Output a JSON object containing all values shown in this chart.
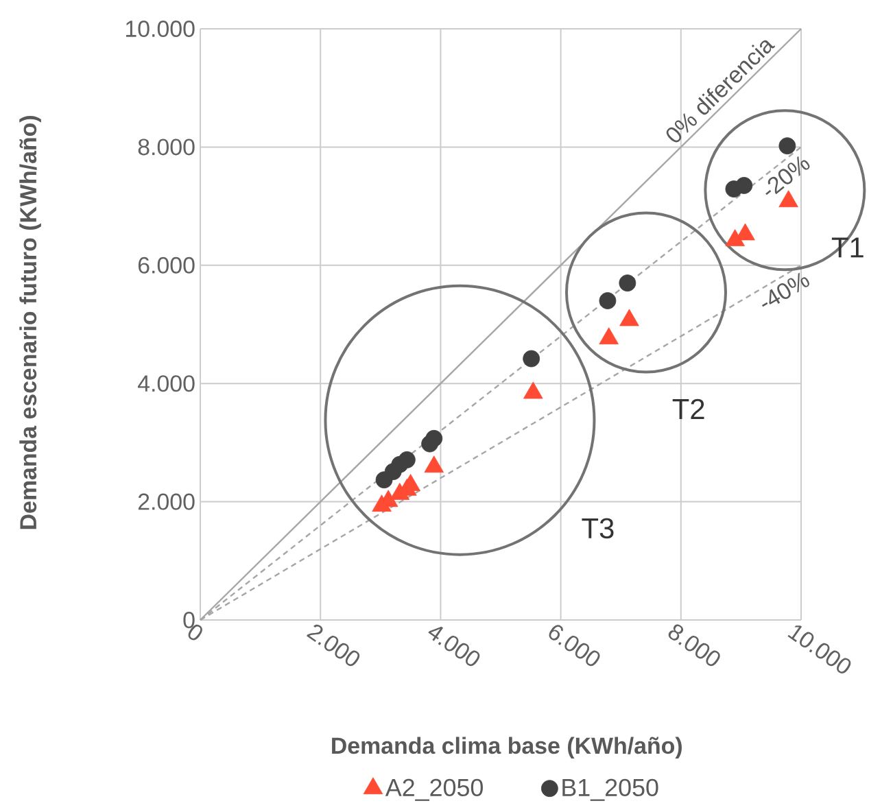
{
  "chart_data": {
    "type": "scatter",
    "xlabel": "Demanda clima base (KWh/año)",
    "ylabel": "Demanda escenario futuro (KWh/año)",
    "xlim": [
      0,
      10000
    ],
    "ylim": [
      0,
      10000
    ],
    "xticks": [
      0,
      {
        "value": 2000,
        "label": "2.000"
      },
      {
        "value": 4000,
        "label": "4.000"
      },
      {
        "value": 6000,
        "label": "6.000"
      },
      {
        "value": 8000,
        "label": "8.000"
      },
      {
        "value": 10000,
        "label": "10.000"
      }
    ],
    "yticks": [
      0,
      {
        "value": 2000,
        "label": "2.000"
      },
      {
        "value": 4000,
        "label": "4.000"
      },
      {
        "value": 6000,
        "label": "6.000"
      },
      {
        "value": 8000,
        "label": "8.000"
      },
      {
        "value": 10000,
        "label": "10.000"
      }
    ],
    "grid": true,
    "legend": "bottom",
    "series": [
      {
        "name": "A2_2050",
        "marker": "triangle",
        "color": "#ff4b33",
        "x": [
          9790,
          9070,
          8900,
          7140,
          6800,
          5540,
          3890,
          3500,
          3440,
          3320,
          3130,
          3020
        ],
        "values": [
          7080,
          6520,
          6420,
          5070,
          4760,
          3840,
          2590,
          2280,
          2200,
          2130,
          2010,
          1930
        ]
      },
      {
        "name": "B1_2050",
        "marker": "circle",
        "color": "#404040",
        "x": [
          9770,
          9050,
          8880,
          7110,
          6780,
          5510,
          3890,
          3820,
          3440,
          3320,
          3210,
          3060
        ],
        "values": [
          8020,
          7350,
          7290,
          5700,
          5400,
          4420,
          3070,
          2980,
          2710,
          2630,
          2510,
          2370
        ]
      },
      {
        "name": "0% diferencia",
        "type": "line",
        "line_style": "solid",
        "marker": "none",
        "color": "#a6a6a6",
        "x": [
          0,
          10000
        ],
        "values": [
          0,
          10000
        ]
      },
      {
        "name": "-20%",
        "type": "line",
        "line_style": "dashed",
        "marker": "none",
        "color": "#a6a6a6",
        "x": [
          0,
          10000
        ],
        "values": [
          0,
          8000
        ]
      },
      {
        "name": "-40%",
        "type": "line",
        "line_style": "dashed",
        "marker": "none",
        "color": "#a6a6a6",
        "x": [
          0,
          10000
        ],
        "values": [
          0,
          6000
        ]
      }
    ],
    "annotations": [
      "T1",
      "T2",
      "T3"
    ]
  }
}
